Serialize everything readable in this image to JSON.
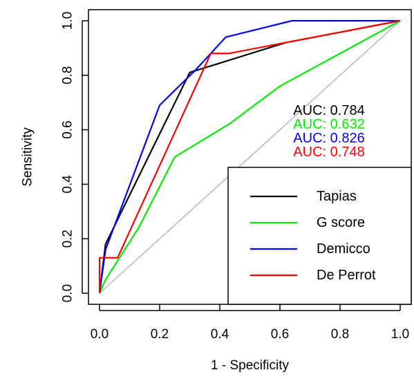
{
  "chart_data": {
    "type": "line",
    "title": "",
    "xlabel": "1 - Specificity",
    "ylabel": "Sensitivity",
    "xlim": [
      0,
      1
    ],
    "ylim": [
      0,
      1
    ],
    "x_ticks": [
      "0.0",
      "0.2",
      "0.4",
      "0.6",
      "0.8",
      "1.0"
    ],
    "y_ticks": [
      "0.0",
      "0.2",
      "0.4",
      "0.6",
      "0.8",
      "1.0"
    ],
    "grid": false,
    "diagonal_reference": true,
    "legend_position": "bottom-right",
    "series": [
      {
        "name": "Tapias",
        "color": "#000000",
        "auc_label": "AUC: 0.784",
        "points": [
          [
            0,
            0
          ],
          [
            0.02,
            0.18
          ],
          [
            0.3,
            0.81
          ],
          [
            0.62,
            0.92
          ],
          [
            1,
            1
          ]
        ]
      },
      {
        "name": "G score",
        "color": "#00ee00",
        "auc_label": "AUC: 0.632",
        "points": [
          [
            0,
            0
          ],
          [
            0.02,
            0.05
          ],
          [
            0.13,
            0.24
          ],
          [
            0.25,
            0.5
          ],
          [
            0.43,
            0.62
          ],
          [
            0.6,
            0.76
          ],
          [
            1,
            1
          ]
        ]
      },
      {
        "name": "Demicco",
        "color": "#0000ff",
        "auc_label": "AUC: 0.826",
        "points": [
          [
            0,
            0
          ],
          [
            0.02,
            0.16
          ],
          [
            0.2,
            0.69
          ],
          [
            0.32,
            0.82
          ],
          [
            0.42,
            0.94
          ],
          [
            0.64,
            1.0
          ],
          [
            1,
            1
          ]
        ]
      },
      {
        "name": "De Perrot",
        "color": "#ff0000",
        "auc_label": "AUC: 0.748",
        "points": [
          [
            0,
            0
          ],
          [
            0,
            0.13
          ],
          [
            0.06,
            0.13
          ],
          [
            0.37,
            0.88
          ],
          [
            0.43,
            0.88
          ],
          [
            1,
            1
          ]
        ]
      }
    ]
  }
}
